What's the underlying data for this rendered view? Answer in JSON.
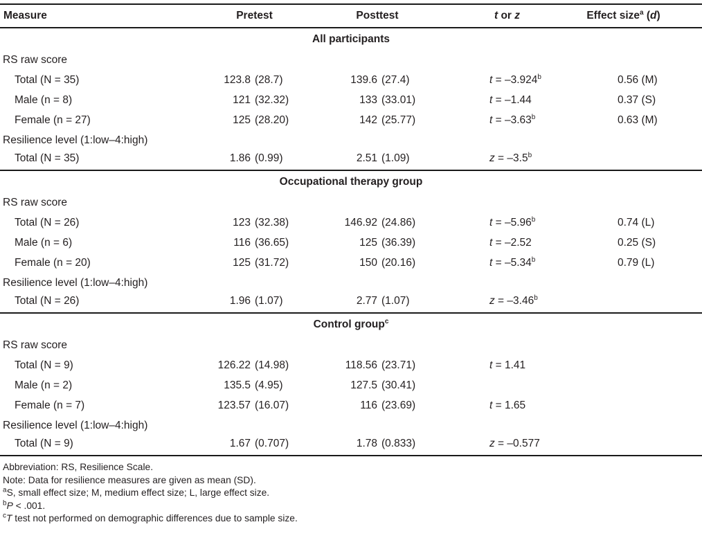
{
  "colors": {
    "text": "#231f20",
    "rule": "#1a1a1a",
    "background": "#ffffff"
  },
  "header": {
    "measure": "Measure",
    "pretest": "Pretest",
    "posttest": "Posttest",
    "stat": {
      "i1": "t",
      "mid": " or ",
      "i2": "z"
    },
    "effect": {
      "label": "Effect size",
      "sup": "a",
      "open": " (",
      "d": "d",
      "close": ")"
    }
  },
  "sections": [
    {
      "title": "All participants",
      "title_sup": "",
      "rows": [
        {
          "type": "subhead",
          "label": "RS raw score"
        },
        {
          "type": "data",
          "label": "Total (N = 35)",
          "pretest": {
            "mean": "123.8",
            "sd": "(28.7)"
          },
          "posttest": {
            "mean": "139.6",
            "sd": "(27.4)"
          },
          "stat": {
            "sym": "t",
            "rest": " = –3.924",
            "sup": "b"
          },
          "effect": "0.56 (M)"
        },
        {
          "type": "data",
          "label": "Male (n = 8)",
          "pretest": {
            "mean": "121",
            "sd": "(32.32)"
          },
          "posttest": {
            "mean": "133",
            "sd": "(33.01)"
          },
          "stat": {
            "sym": "t",
            "rest": " = –1.44",
            "sup": ""
          },
          "effect": "0.37 (S)"
        },
        {
          "type": "data",
          "label": "Female (n = 27)",
          "pretest": {
            "mean": "125",
            "sd": "(28.20)"
          },
          "posttest": {
            "mean": "142",
            "sd": "(25.77)"
          },
          "stat": {
            "sym": "t",
            "rest": " = –3.63",
            "sup": "b"
          },
          "effect": "0.63 (M)"
        },
        {
          "type": "subhead",
          "label": "Resilience level (1:low–4:high)"
        },
        {
          "type": "data",
          "label": "Total (N = 35)",
          "pretest": {
            "mean": "1.86",
            "sd": "(0.99)"
          },
          "posttest": {
            "mean": "2.51",
            "sd": "(1.09)"
          },
          "stat": {
            "sym": "z",
            "rest": " = –3.5",
            "sup": "b"
          },
          "effect": ""
        }
      ]
    },
    {
      "title": "Occupational therapy group",
      "title_sup": "",
      "rows": [
        {
          "type": "subhead",
          "label": "RS raw score"
        },
        {
          "type": "data",
          "label": "Total (N = 26)",
          "pretest": {
            "mean": "123",
            "sd": "(32.38)"
          },
          "posttest": {
            "mean": "146.92",
            "sd": "(24.86)"
          },
          "stat": {
            "sym": "t",
            "rest": " = –5.96",
            "sup": "b"
          },
          "effect": "0.74 (L)"
        },
        {
          "type": "data",
          "label": "Male (n = 6)",
          "pretest": {
            "mean": "116",
            "sd": "(36.65)"
          },
          "posttest": {
            "mean": "125",
            "sd": "(36.39)"
          },
          "stat": {
            "sym": "t",
            "rest": " = –2.52",
            "sup": ""
          },
          "effect": "0.25 (S)"
        },
        {
          "type": "data",
          "label": "Female (n = 20)",
          "pretest": {
            "mean": "125",
            "sd": "(31.72)"
          },
          "posttest": {
            "mean": "150",
            "sd": "(20.16)"
          },
          "stat": {
            "sym": "t",
            "rest": " = –5.34",
            "sup": "b"
          },
          "effect": "0.79 (L)"
        },
        {
          "type": "subhead",
          "label": "Resilience level (1:low–4:high)"
        },
        {
          "type": "data",
          "label": "Total (N = 26)",
          "pretest": {
            "mean": "1.96",
            "sd": "(1.07)"
          },
          "posttest": {
            "mean": "2.77",
            "sd": "(1.07)"
          },
          "stat": {
            "sym": "z",
            "rest": " = –3.46",
            "sup": "b"
          },
          "effect": ""
        }
      ]
    },
    {
      "title": "Control group",
      "title_sup": "c",
      "rows": [
        {
          "type": "subhead",
          "label": "RS raw score"
        },
        {
          "type": "data",
          "label": "Total (N = 9)",
          "pretest": {
            "mean": "126.22",
            "sd": "(14.98)"
          },
          "posttest": {
            "mean": "118.56",
            "sd": "(23.71)"
          },
          "stat": {
            "sym": "t",
            "rest": " = 1.41",
            "sup": ""
          },
          "effect": ""
        },
        {
          "type": "data",
          "label": "Male (n = 2)",
          "pretest": {
            "mean": "135.5",
            "sd": "(4.95)"
          },
          "posttest": {
            "mean": "127.5",
            "sd": "(30.41)"
          },
          "stat": null,
          "effect": ""
        },
        {
          "type": "data",
          "label": "Female (n = 7)",
          "pretest": {
            "mean": "123.57",
            "sd": "(16.07)"
          },
          "posttest": {
            "mean": "116",
            "sd": "(23.69)"
          },
          "stat": {
            "sym": "t",
            "rest": " = 1.65",
            "sup": ""
          },
          "effect": ""
        },
        {
          "type": "subhead",
          "label": "Resilience level (1:low–4:high)"
        },
        {
          "type": "data",
          "label": "Total (N = 9)",
          "pretest": {
            "mean": "1.67",
            "sd": "(0.707)"
          },
          "posttest": {
            "mean": "1.78",
            "sd": "(0.833)"
          },
          "stat": {
            "sym": "z",
            "rest": " = –0.577",
            "sup": ""
          },
          "effect": ""
        }
      ]
    }
  ],
  "footnotes": [
    {
      "sup": "",
      "italic": "",
      "text": "Abbreviation: RS, Resilience Scale."
    },
    {
      "sup": "",
      "italic": "",
      "text": "Note: Data for resilience measures are given as mean (SD)."
    },
    {
      "sup": "a",
      "italic": "",
      "text": "S, small effect size; M, medium effect size; L, large effect size."
    },
    {
      "sup": "b",
      "italic": "P",
      "text": " < .001."
    },
    {
      "sup": "c",
      "italic": "T",
      "text": " test not performed on demographic differences due to sample size."
    }
  ]
}
